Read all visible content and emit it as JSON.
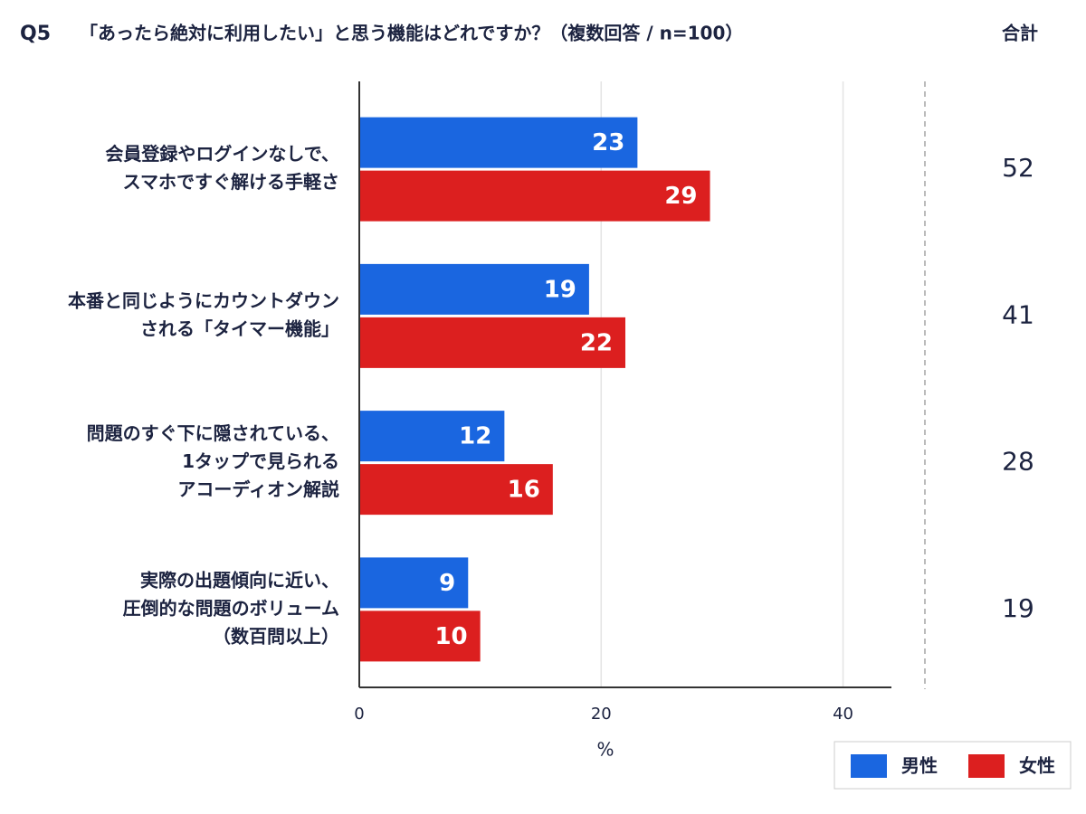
{
  "chart_data": {
    "type": "bar",
    "orientation": "horizontal",
    "question_number": "Q5",
    "title": "「あったら絶対に利用したい」と思う機能はどれですか？（複数回答 / n=100）",
    "categories": [
      [
        "会員登録やログインなしで、",
        "スマホですぐ解ける手軽さ"
      ],
      [
        "本番と同じようにカウントダウン",
        "される「タイマー機能」"
      ],
      [
        "問題のすぐ下に隠されている、",
        "1タップで見られる",
        "アコーディオン解説"
      ],
      [
        "実際の出題傾向に近い、",
        "圧倒的な問題のボリューム",
        "（数百問以上）"
      ]
    ],
    "series": [
      {
        "name": "男性",
        "color": "#1a66e0",
        "values": [
          23,
          19,
          12,
          9
        ]
      },
      {
        "name": "女性",
        "color": "#dc1f1f",
        "values": [
          29,
          22,
          16,
          10
        ]
      }
    ],
    "totals_label": "合計",
    "totals": [
      52,
      41,
      28,
      19
    ],
    "xlabel": "%",
    "xlim": [
      0,
      44
    ],
    "xticks": [
      0,
      20,
      40
    ],
    "grid": true,
    "legend": "bottom-right"
  }
}
